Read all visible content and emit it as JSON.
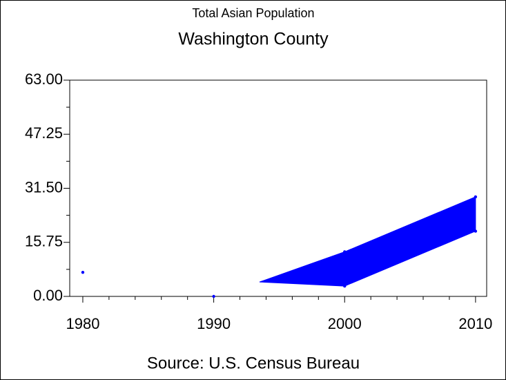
{
  "chart_data": {
    "type": "band",
    "title": "Total Asian Population",
    "subtitle": "Washington County",
    "footnote": "Source: U.S. Census Bureau",
    "color": "#0000ff",
    "points": {
      "x": [
        1980,
        1990
      ],
      "values": [
        7,
        0
      ]
    },
    "band": {
      "x": [
        1993.5,
        2000,
        2010
      ],
      "upper": [
        4.2,
        13,
        29
      ],
      "lower": [
        4.2,
        3,
        19
      ]
    },
    "xlim": [
      1979,
      2010.85
    ],
    "xticks": [
      1980,
      1990,
      2000,
      2010
    ],
    "xminorticks": [
      1982,
      1984,
      1986,
      1988,
      1992,
      1994,
      1996,
      1998,
      2002,
      2004,
      2006,
      2008
    ],
    "ylim": [
      0,
      63
    ],
    "yticks": [
      {
        "value": 0,
        "label": "0.00"
      },
      {
        "value": 15.75,
        "label": "15.75"
      },
      {
        "value": 31.5,
        "label": "31.50"
      },
      {
        "value": 47.25,
        "label": "47.25"
      },
      {
        "value": 63,
        "label": "63.00"
      }
    ],
    "yminorticks": [
      7.875,
      23.625,
      39.375,
      55.125
    ]
  }
}
